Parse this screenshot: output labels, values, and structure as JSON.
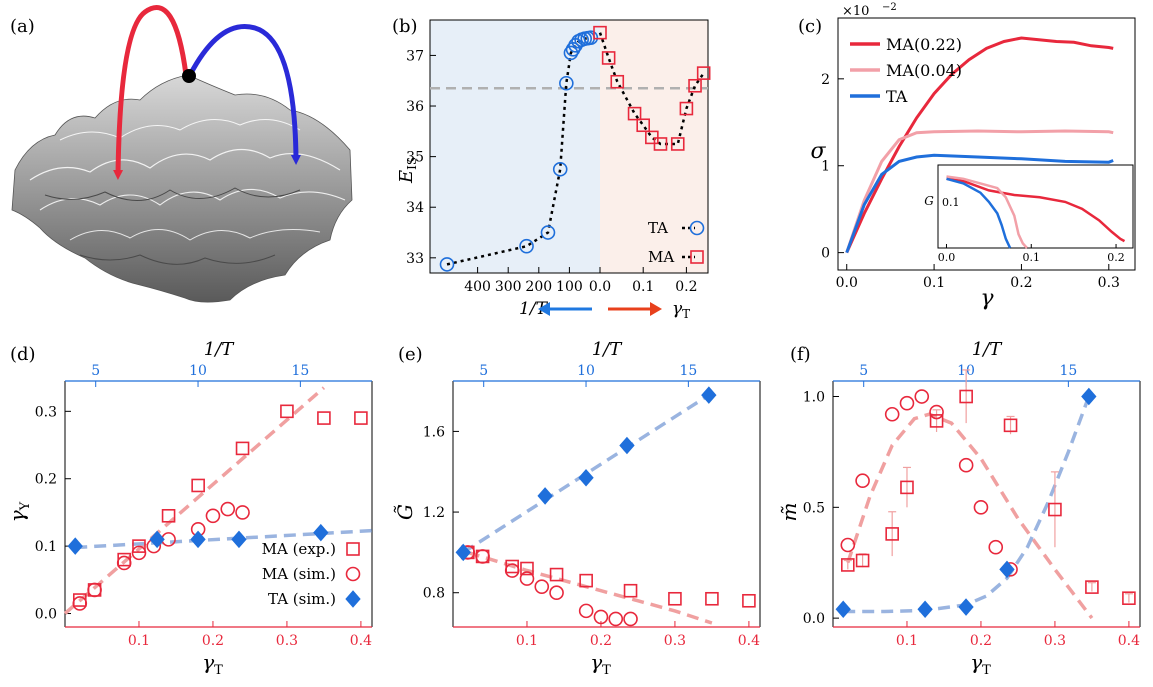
{
  "panel_letters": {
    "a": "(a)",
    "b": "(b)",
    "c": "(c)",
    "d": "(d)",
    "e": "(e)",
    "f": "(f)"
  },
  "colors": {
    "red": "#e8283c",
    "pink": "#f2a0a8",
    "blue": "#1f6fdb",
    "dash_red": "#f0a0a0",
    "dash_blue": "#9ab4e0",
    "arrow_red": "#e8401c",
    "arrow_blue": "#1f78e0"
  },
  "chart_data": [
    {
      "panel": "b",
      "type": "scatter",
      "ylabel": "E_IS",
      "xlabel_left": "1/T",
      "xlabel_right": "γ_T",
      "ylim": [
        32.7,
        37.7
      ],
      "ticks_left": [
        "400",
        "300",
        "200",
        "100",
        "0.0"
      ],
      "ticks_right": [
        "0.1",
        "0.2"
      ],
      "yticks": [
        "33",
        "34",
        "35",
        "36",
        "37"
      ],
      "reference_line": 36.35,
      "legend": [
        "TA",
        "MA"
      ],
      "series": [
        {
          "name": "TA",
          "marker": "circle",
          "x_invT": [
            500,
            240,
            170,
            130,
            110,
            95,
            88,
            80,
            70,
            60,
            50,
            40,
            30
          ],
          "y": [
            32.87,
            33.23,
            33.5,
            34.75,
            36.45,
            37.05,
            37.12,
            37.2,
            37.28,
            37.31,
            37.33,
            37.34,
            37.35
          ]
        },
        {
          "name": "MA",
          "marker": "square",
          "x_gammaT": [
            0.0,
            0.02,
            0.04,
            0.08,
            0.1,
            0.12,
            0.14,
            0.18,
            0.2,
            0.22,
            0.24
          ],
          "y": [
            37.45,
            36.95,
            36.48,
            35.85,
            35.62,
            35.38,
            35.25,
            35.25,
            35.95,
            36.4,
            36.65
          ]
        }
      ]
    },
    {
      "panel": "c",
      "type": "line",
      "ylabel": "σ",
      "xlabel": "γ",
      "scale_label": "×10",
      "scale_exponent": "−2",
      "xlim": [
        -0.01,
        0.33
      ],
      "ylim": [
        -0.2,
        2.7
      ],
      "xticks": [
        "0.0",
        "0.1",
        "0.2",
        "0.3"
      ],
      "yticks": [
        "0",
        "1",
        "2"
      ],
      "legend": [
        "MA(0.22)",
        "MA(0.04)",
        "TA"
      ],
      "series": [
        {
          "name": "MA(0.22)",
          "x": [
            0,
            0.02,
            0.04,
            0.06,
            0.08,
            0.1,
            0.12,
            0.14,
            0.16,
            0.18,
            0.2,
            0.22,
            0.24,
            0.26,
            0.28,
            0.3,
            0.305
          ],
          "y": [
            0,
            0.45,
            0.85,
            1.22,
            1.55,
            1.83,
            2.05,
            2.22,
            2.35,
            2.43,
            2.47,
            2.45,
            2.43,
            2.42,
            2.38,
            2.36,
            2.35
          ]
        },
        {
          "name": "MA(0.04)",
          "x": [
            0,
            0.02,
            0.04,
            0.06,
            0.08,
            0.1,
            0.15,
            0.2,
            0.25,
            0.3,
            0.305
          ],
          "y": [
            0,
            0.6,
            1.05,
            1.3,
            1.38,
            1.39,
            1.4,
            1.39,
            1.4,
            1.39,
            1.38
          ]
        },
        {
          "name": "TA",
          "x": [
            0,
            0.02,
            0.04,
            0.06,
            0.08,
            0.1,
            0.15,
            0.2,
            0.25,
            0.3,
            0.305
          ],
          "y": [
            0,
            0.55,
            0.9,
            1.05,
            1.1,
            1.12,
            1.1,
            1.08,
            1.05,
            1.04,
            1.06
          ]
        }
      ],
      "inset": {
        "ylabel": "G",
        "ytick": "0.1",
        "xticks": [
          "0.0",
          "0.1",
          "0.2"
        ],
        "xlim": [
          -0.01,
          0.22
        ],
        "ylim": [
          0,
          0.18
        ],
        "series": [
          {
            "name": "MA(0.22)",
            "x": [
              0,
              0.02,
              0.05,
              0.08,
              0.11,
              0.14,
              0.16,
              0.18,
              0.195,
              0.205,
              0.21
            ],
            "y": [
              0.15,
              0.145,
              0.125,
              0.115,
              0.11,
              0.1,
              0.085,
              0.06,
              0.035,
              0.02,
              0.015
            ]
          },
          {
            "name": "MA(0.04)",
            "x": [
              0,
              0.02,
              0.04,
              0.06,
              0.07,
              0.08,
              0.085,
              0.09,
              0.095
            ],
            "y": [
              0.155,
              0.15,
              0.14,
              0.13,
              0.11,
              0.07,
              0.03,
              0.01,
              0.0
            ]
          },
          {
            "name": "TA",
            "x": [
              0,
              0.02,
              0.04,
              0.05,
              0.06,
              0.065,
              0.07,
              0.075
            ],
            "y": [
              0.15,
              0.14,
              0.12,
              0.1,
              0.075,
              0.05,
              0.02,
              0.0
            ]
          }
        ]
      }
    },
    {
      "panel": "d",
      "type": "scatter",
      "ylabel": "γ_Y",
      "xlabel": "γ_T",
      "top_label": "1/T",
      "xlim": [
        0,
        0.415
      ],
      "ylim": [
        -0.02,
        0.345
      ],
      "top_xlim": [
        3.5,
        18.5
      ],
      "xticks": [
        "0.1",
        "0.2",
        "0.3",
        "0.4"
      ],
      "yticks": [
        "0.0",
        "0.1",
        "0.2",
        "0.3"
      ],
      "top_ticks": [
        "5",
        "10",
        "15"
      ],
      "legend": [
        "MA (exp.)",
        "MA (sim.)",
        "TA (sim.)"
      ],
      "series": [
        {
          "name": "MA (exp.)",
          "marker": "square",
          "x": [
            0.02,
            0.04,
            0.08,
            0.1,
            0.14,
            0.18,
            0.24,
            0.3,
            0.35,
            0.4
          ],
          "y": [
            0.02,
            0.035,
            0.08,
            0.1,
            0.145,
            0.19,
            0.245,
            0.3,
            0.29,
            0.29
          ]
        },
        {
          "name": "MA (sim.)",
          "marker": "circle",
          "x": [
            0.02,
            0.04,
            0.08,
            0.1,
            0.12,
            0.14,
            0.18,
            0.2,
            0.22,
            0.24
          ],
          "y": [
            0.015,
            0.035,
            0.075,
            0.09,
            0.1,
            0.11,
            0.125,
            0.145,
            0.155,
            0.15
          ]
        },
        {
          "name": "TA (sim.)",
          "marker": "diamond",
          "x_invT": [
            4,
            8,
            10,
            12,
            16
          ],
          "y": [
            0.1,
            0.11,
            0.11,
            0.11,
            0.12
          ]
        }
      ],
      "fits": [
        {
          "name": "MA fit",
          "x": [
            0.0,
            0.35
          ],
          "y": [
            0.0,
            0.335
          ]
        },
        {
          "name": "TA fit",
          "x_invT": [
            4,
            18.5
          ],
          "y": [
            0.098,
            0.123
          ]
        }
      ]
    },
    {
      "panel": "e",
      "type": "scatter",
      "ylabel": "G̃",
      "xlabel": "γ_T",
      "top_label": "1/T",
      "xlim": [
        0,
        0.415
      ],
      "ylim": [
        0.63,
        1.85
      ],
      "top_xlim": [
        3.5,
        18.5
      ],
      "xticks": [
        "0.1",
        "0.2",
        "0.3",
        "0.4"
      ],
      "yticks": [
        "0.8",
        "1.2",
        "1.6"
      ],
      "top_ticks": [
        "5",
        "10",
        "15"
      ],
      "series": [
        {
          "name": "MA (exp.)",
          "marker": "square",
          "x": [
            0.02,
            0.04,
            0.08,
            0.1,
            0.14,
            0.18,
            0.24,
            0.3,
            0.35,
            0.4
          ],
          "y": [
            1.0,
            0.98,
            0.93,
            0.92,
            0.89,
            0.86,
            0.81,
            0.77,
            0.77,
            0.76
          ]
        },
        {
          "name": "MA (sim.)",
          "marker": "circle",
          "x": [
            0.02,
            0.04,
            0.08,
            0.1,
            0.12,
            0.14,
            0.18,
            0.2,
            0.22,
            0.24
          ],
          "y": [
            1.0,
            0.98,
            0.91,
            0.87,
            0.83,
            0.8,
            0.71,
            0.68,
            0.67,
            0.67
          ]
        },
        {
          "name": "TA (sim.)",
          "marker": "diamond",
          "x_invT": [
            4,
            8,
            10,
            12,
            16
          ],
          "y": [
            1.0,
            1.28,
            1.37,
            1.53,
            1.78
          ]
        }
      ],
      "fits": [
        {
          "name": "MA fit",
          "x": [
            0.02,
            0.1,
            0.2,
            0.3,
            0.35
          ],
          "y": [
            1.0,
            0.91,
            0.81,
            0.71,
            0.65
          ]
        },
        {
          "name": "TA fit",
          "x_invT": [
            4,
            16
          ],
          "y": [
            1.0,
            1.78
          ]
        }
      ]
    },
    {
      "panel": "f",
      "type": "scatter",
      "ylabel": "m̃",
      "xlabel": "γ_T",
      "top_label": "1/T",
      "xlim": [
        0,
        0.415
      ],
      "ylim": [
        -0.04,
        1.07
      ],
      "top_xlim": [
        3.5,
        18.5
      ],
      "xticks": [
        "0.1",
        "0.2",
        "0.3",
        "0.4"
      ],
      "yticks": [
        "0.0",
        "0.5",
        "1.0"
      ],
      "top_ticks": [
        "5",
        "10",
        "15"
      ],
      "series": [
        {
          "name": "MA (exp.)",
          "marker": "square",
          "x": [
            0.02,
            0.04,
            0.08,
            0.1,
            0.14,
            0.18,
            0.24,
            0.3,
            0.35,
            0.4
          ],
          "y": [
            0.24,
            0.26,
            0.38,
            0.59,
            0.89,
            1.0,
            0.87,
            0.49,
            0.14,
            0.09
          ],
          "err": [
            0.02,
            0.03,
            0.1,
            0.09,
            0.05,
            0.12,
            0.04,
            0.17,
            0.02,
            0.02
          ]
        },
        {
          "name": "MA (sim.)",
          "marker": "circle",
          "x": [
            0.02,
            0.04,
            0.08,
            0.1,
            0.12,
            0.14,
            0.18,
            0.2,
            0.22,
            0.24
          ],
          "y": [
            0.33,
            0.62,
            0.92,
            0.97,
            1.0,
            0.93,
            0.69,
            0.5,
            0.32,
            0.22
          ]
        },
        {
          "name": "TA (sim.)",
          "marker": "diamond",
          "x_invT": [
            4,
            8,
            10,
            12,
            16
          ],
          "y": [
            0.04,
            0.04,
            0.05,
            0.22,
            1.0
          ]
        }
      ],
      "fits": [
        {
          "name": "MA fit",
          "x": [
            0.02,
            0.05,
            0.08,
            0.11,
            0.13,
            0.16,
            0.2,
            0.25,
            0.3,
            0.35
          ],
          "y": [
            0.25,
            0.55,
            0.78,
            0.9,
            0.92,
            0.88,
            0.72,
            0.45,
            0.22,
            0.0
          ]
        },
        {
          "name": "TA fit",
          "x_invT": [
            4,
            6,
            8,
            10,
            11,
            12,
            13,
            14,
            15,
            16
          ],
          "y": [
            0.03,
            0.03,
            0.035,
            0.06,
            0.1,
            0.18,
            0.32,
            0.52,
            0.75,
            1.0
          ]
        }
      ]
    }
  ]
}
